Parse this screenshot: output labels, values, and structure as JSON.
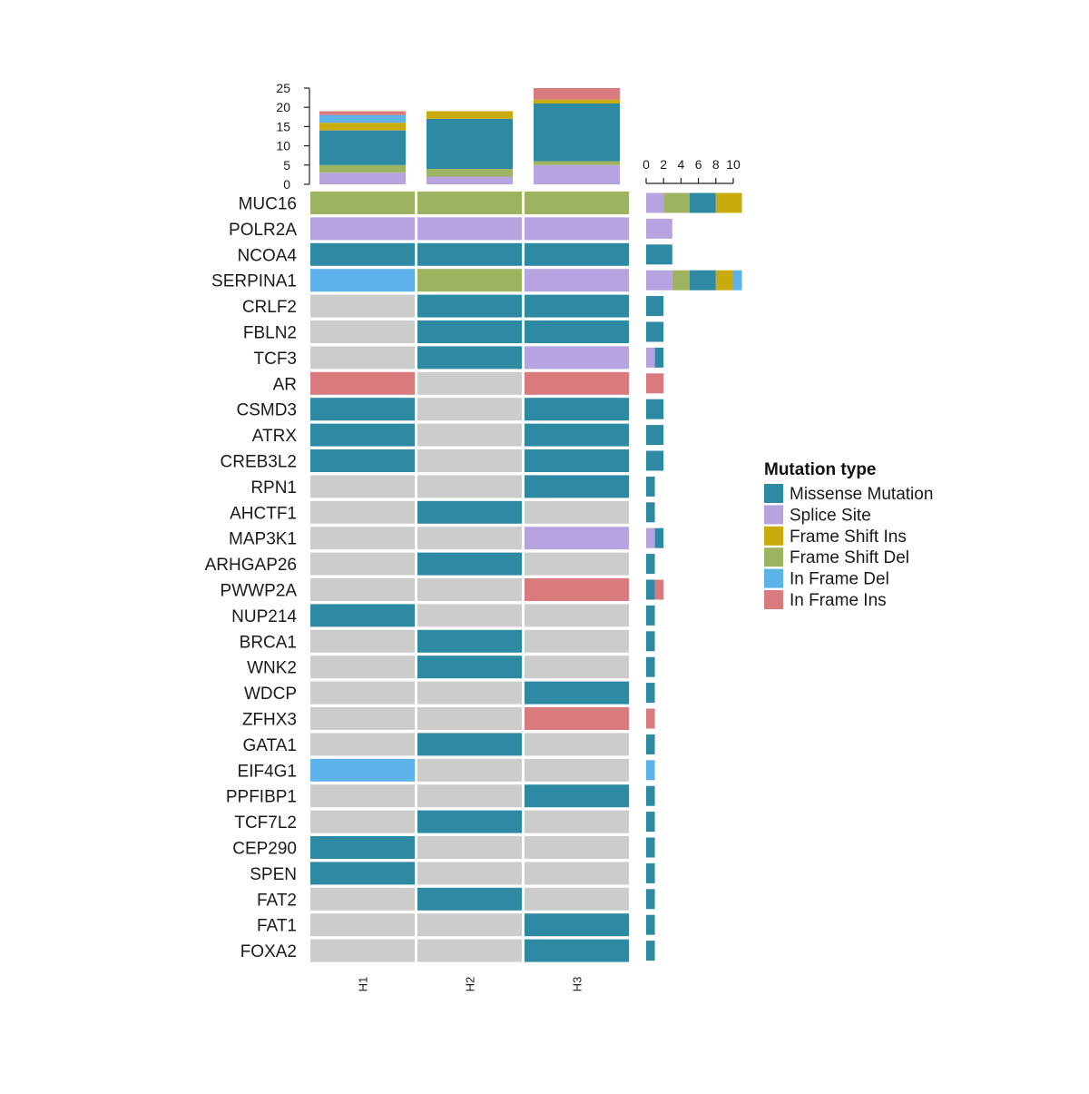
{
  "chart_data": {
    "type": "heatmap",
    "title": "",
    "samples": [
      "H1",
      "H2",
      "H3"
    ],
    "genes": [
      "MUC16",
      "POLR2A",
      "NCOA4",
      "SERPINA1",
      "CRLF2",
      "FBLN2",
      "TCF3",
      "AR",
      "CSMD3",
      "ATRX",
      "CREB3L2",
      "RPN1",
      "AHCTF1",
      "MAP3K1",
      "ARHGAP26",
      "PWWP2A",
      "NUP214",
      "BRCA1",
      "WNK2",
      "WDCP",
      "ZFHX3",
      "GATA1",
      "EIF4G1",
      "PPFIBP1",
      "TCF7L2",
      "CEP290",
      "SPEN",
      "FAT2",
      "FAT1",
      "FOXA2"
    ],
    "mutation_types": [
      "Missense Mutation",
      "Splice Site",
      "Frame Shift Ins",
      "Frame Shift Del",
      "In Frame Del",
      "In Frame Ins"
    ],
    "colors": {
      "Missense Mutation": "#2e89a3",
      "Splice Site": "#b6a4e0",
      "Frame Shift Ins": "#c9ab0e",
      "Frame Shift Del": "#9eb35f",
      "In Frame Del": "#5db2ea",
      "In Frame Ins": "#d87a7e",
      "none": "#cccccc"
    },
    "matrix": [
      [
        "Frame Shift Del",
        "Frame Shift Del",
        "Frame Shift Del"
      ],
      [
        "Splice Site",
        "Splice Site",
        "Splice Site"
      ],
      [
        "Missense Mutation",
        "Missense Mutation",
        "Missense Mutation"
      ],
      [
        "In Frame Del",
        "Frame Shift Del",
        "Splice Site"
      ],
      [
        null,
        "Missense Mutation",
        "Missense Mutation"
      ],
      [
        null,
        "Missense Mutation",
        "Missense Mutation"
      ],
      [
        null,
        "Missense Mutation",
        "Splice Site"
      ],
      [
        "In Frame Ins",
        null,
        "In Frame Ins"
      ],
      [
        "Missense Mutation",
        null,
        "Missense Mutation"
      ],
      [
        "Missense Mutation",
        null,
        "Missense Mutation"
      ],
      [
        "Missense Mutation",
        null,
        "Missense Mutation"
      ],
      [
        null,
        null,
        "Missense Mutation"
      ],
      [
        null,
        "Missense Mutation",
        null
      ],
      [
        null,
        null,
        "Splice Site"
      ],
      [
        null,
        "Missense Mutation",
        null
      ],
      [
        null,
        null,
        "In Frame Ins"
      ],
      [
        "Missense Mutation",
        null,
        null
      ],
      [
        null,
        "Missense Mutation",
        null
      ],
      [
        null,
        "Missense Mutation",
        null
      ],
      [
        null,
        null,
        "Missense Mutation"
      ],
      [
        null,
        null,
        "In Frame Ins"
      ],
      [
        null,
        "Missense Mutation",
        null
      ],
      [
        "In Frame Del",
        null,
        null
      ],
      [
        null,
        null,
        "Missense Mutation"
      ],
      [
        null,
        "Missense Mutation",
        null
      ],
      [
        "Missense Mutation",
        null,
        null
      ],
      [
        "Missense Mutation",
        null,
        null
      ],
      [
        null,
        "Missense Mutation",
        null
      ],
      [
        null,
        null,
        "Missense Mutation"
      ],
      [
        null,
        null,
        "Missense Mutation"
      ]
    ],
    "sample_totals": {
      "axis_ticks": [
        0,
        5,
        10,
        15,
        20,
        25
      ],
      "ylim": [
        0,
        25
      ],
      "stack_order": [
        "Splice Site",
        "Frame Shift Del",
        "Missense Mutation",
        "Frame Shift Ins",
        "In Frame Del",
        "In Frame Ins"
      ],
      "values": [
        {
          "Splice Site": 3,
          "Frame Shift Del": 2,
          "Missense Mutation": 9,
          "Frame Shift Ins": 2,
          "In Frame Del": 2,
          "In Frame Ins": 1
        },
        {
          "Splice Site": 2,
          "Frame Shift Del": 2,
          "Missense Mutation": 13,
          "Frame Shift Ins": 2,
          "In Frame Del": 0,
          "In Frame Ins": 0
        },
        {
          "Splice Site": 5,
          "Frame Shift Del": 1,
          "Missense Mutation": 15,
          "Frame Shift Ins": 1,
          "In Frame Del": 0,
          "In Frame Ins": 3
        }
      ]
    },
    "gene_totals": {
      "axis_ticks": [
        0,
        2,
        4,
        6,
        8,
        10
      ],
      "xlim": [
        0,
        10
      ],
      "stack_order": [
        "Splice Site",
        "Frame Shift Del",
        "Missense Mutation",
        "Frame Shift Ins",
        "In Frame Del",
        "In Frame Ins"
      ],
      "values": [
        {
          "Splice Site": 2,
          "Frame Shift Del": 3,
          "Missense Mutation": 3,
          "Frame Shift Ins": 3
        },
        {
          "Splice Site": 3
        },
        {
          "Missense Mutation": 3
        },
        {
          "Splice Site": 3,
          "Frame Shift Del": 2,
          "Missense Mutation": 3,
          "Frame Shift Ins": 2,
          "In Frame Del": 1
        },
        {
          "Missense Mutation": 2
        },
        {
          "Missense Mutation": 2
        },
        {
          "Splice Site": 1,
          "Missense Mutation": 1
        },
        {
          "In Frame Ins": 2
        },
        {
          "Missense Mutation": 2
        },
        {
          "Missense Mutation": 2
        },
        {
          "Missense Mutation": 2
        },
        {
          "Missense Mutation": 1
        },
        {
          "Missense Mutation": 1
        },
        {
          "Splice Site": 1,
          "Missense Mutation": 1
        },
        {
          "Missense Mutation": 1
        },
        {
          "Missense Mutation": 1,
          "In Frame Ins": 1
        },
        {
          "Missense Mutation": 1
        },
        {
          "Missense Mutation": 1
        },
        {
          "Missense Mutation": 1
        },
        {
          "Missense Mutation": 1
        },
        {
          "In Frame Ins": 1
        },
        {
          "Missense Mutation": 1
        },
        {
          "In Frame Del": 1
        },
        {
          "Missense Mutation": 1
        },
        {
          "Missense Mutation": 1
        },
        {
          "Missense Mutation": 1
        },
        {
          "Missense Mutation": 1
        },
        {
          "Missense Mutation": 1
        },
        {
          "Missense Mutation": 1
        },
        {
          "Missense Mutation": 1
        }
      ]
    },
    "legend": {
      "title": "Mutation type",
      "position": "right",
      "items": [
        "Missense Mutation",
        "Splice Site",
        "Frame Shift Ins",
        "Frame Shift Del",
        "In Frame Del",
        "In Frame Ins"
      ]
    }
  }
}
